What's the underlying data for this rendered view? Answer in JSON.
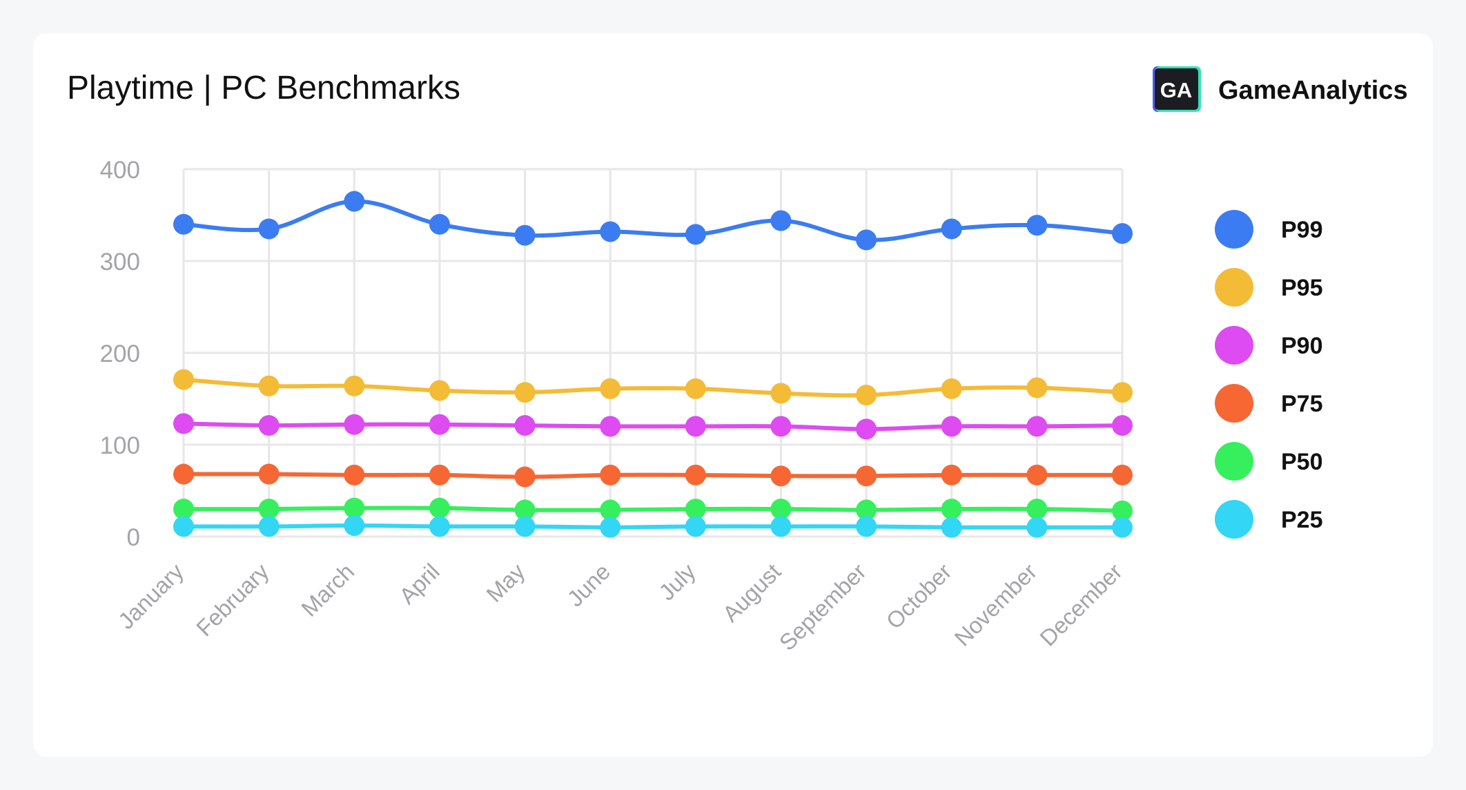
{
  "header": {
    "title": "Playtime | PC Benchmarks",
    "brand_name": "GameAnalytics",
    "logo_text": "GA"
  },
  "chart_data": {
    "type": "line",
    "title": "Playtime | PC Benchmarks",
    "xlabel": "",
    "ylabel": "",
    "ylim": [
      0,
      400
    ],
    "yticks": [
      "0",
      "100",
      "200",
      "300",
      "400"
    ],
    "grid": true,
    "smooth": true,
    "legend_position": "right",
    "categories": [
      "January",
      "February",
      "March",
      "April",
      "May",
      "June",
      "July",
      "August",
      "September",
      "October",
      "November",
      "December"
    ],
    "series": [
      {
        "name": "P99",
        "color": "#3b7cf2",
        "values": [
          340,
          335,
          365,
          340,
          328,
          332,
          329,
          344,
          323,
          335,
          339,
          330
        ]
      },
      {
        "name": "P95",
        "color": "#f4bb36",
        "values": [
          171,
          164,
          164,
          159,
          157,
          161,
          161,
          156,
          154,
          161,
          162,
          157
        ]
      },
      {
        "name": "P90",
        "color": "#dd4bf1",
        "values": [
          123,
          121,
          122,
          122,
          121,
          120,
          120,
          120,
          117,
          120,
          120,
          121
        ]
      },
      {
        "name": "P75",
        "color": "#f66734",
        "values": [
          68,
          68,
          67,
          67,
          65,
          67,
          67,
          66,
          66,
          67,
          67,
          67
        ]
      },
      {
        "name": "P50",
        "color": "#36ef5c",
        "values": [
          30,
          30,
          31,
          31,
          29,
          29,
          30,
          30,
          29,
          30,
          30,
          28
        ]
      },
      {
        "name": "P25",
        "color": "#33d6f5",
        "values": [
          11,
          11,
          12,
          11,
          11,
          10,
          11,
          11,
          11,
          10,
          10,
          10
        ]
      }
    ]
  }
}
